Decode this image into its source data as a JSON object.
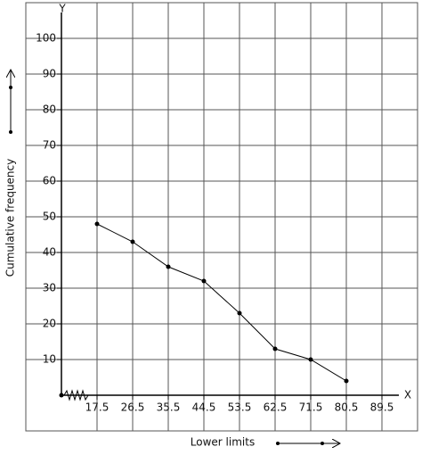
{
  "chart_data": {
    "type": "line",
    "x_label": "Lower limits",
    "y_label": "Cumulative frequency",
    "x_axis_name": "X",
    "y_axis_name": "Y",
    "x": [
      17.5,
      26.5,
      35.5,
      44.5,
      53.5,
      62.5,
      71.5,
      80.5
    ],
    "values": [
      48,
      43,
      36,
      32,
      23,
      13,
      10,
      4
    ],
    "color": "#000000",
    "xlim": [
      -0.5,
      98.5
    ],
    "ylim": [
      -10,
      110
    ],
    "xticks": [
      17.5,
      26.5,
      35.5,
      44.5,
      53.5,
      62.5,
      71.5,
      80.5,
      89.5
    ],
    "yticks": [
      10,
      20,
      30,
      40,
      50,
      60,
      70,
      80,
      90,
      100
    ],
    "grid": true
  }
}
